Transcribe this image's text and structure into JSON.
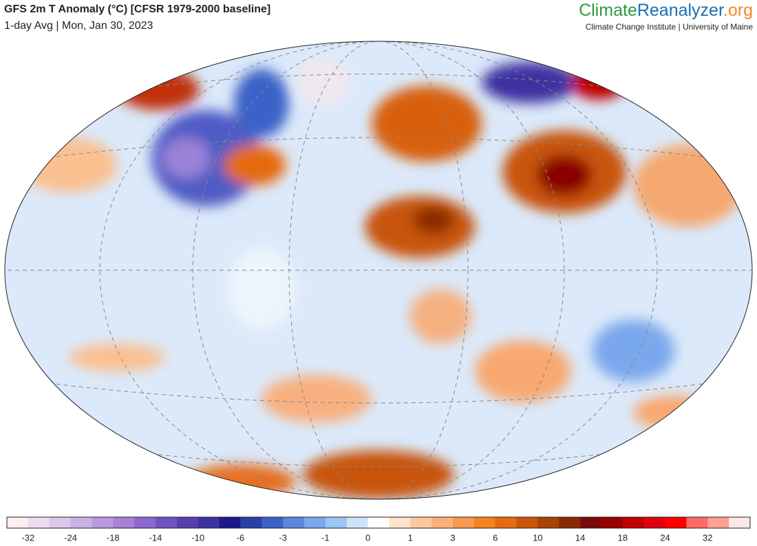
{
  "header": {
    "title": "GFS 2m T Anomaly (°C) [CFSR 1979-2000 baseline]",
    "subtitle": "1-day Avg | Mon, Jan 30, 2023"
  },
  "logo": {
    "part1": "Climate",
    "part2": "Reanalyzer",
    "part3": ".org",
    "tagline": "Climate Change Institute | University of Maine"
  },
  "colorbar": {
    "ticks": [
      -32,
      -24,
      -18,
      -14,
      -10,
      -6,
      -3,
      -1,
      0,
      1,
      3,
      6,
      10,
      14,
      18,
      24,
      32
    ],
    "colors": [
      "#fdeef4",
      "#ecdcef",
      "#dcc6ea",
      "#cbb0e6",
      "#b999e0",
      "#a880d8",
      "#8c69cf",
      "#6f54c0",
      "#5640b0",
      "#3c33a0",
      "#1a1a8c",
      "#2a3fa8",
      "#3b62c8",
      "#5a86dc",
      "#7aa8ec",
      "#9cc4f4",
      "#cfe2f8",
      "#ffffff",
      "#fde3cc",
      "#fcc99e",
      "#fbb27a",
      "#f89a50",
      "#f5821e",
      "#e56a10",
      "#c85508",
      "#a84206",
      "#8a2a04",
      "#7a0a0a",
      "#9a0000",
      "#c00000",
      "#e00010",
      "#ff0000",
      "#ff6a66",
      "#ffa090",
      "#fde8e8"
    ]
  }
}
